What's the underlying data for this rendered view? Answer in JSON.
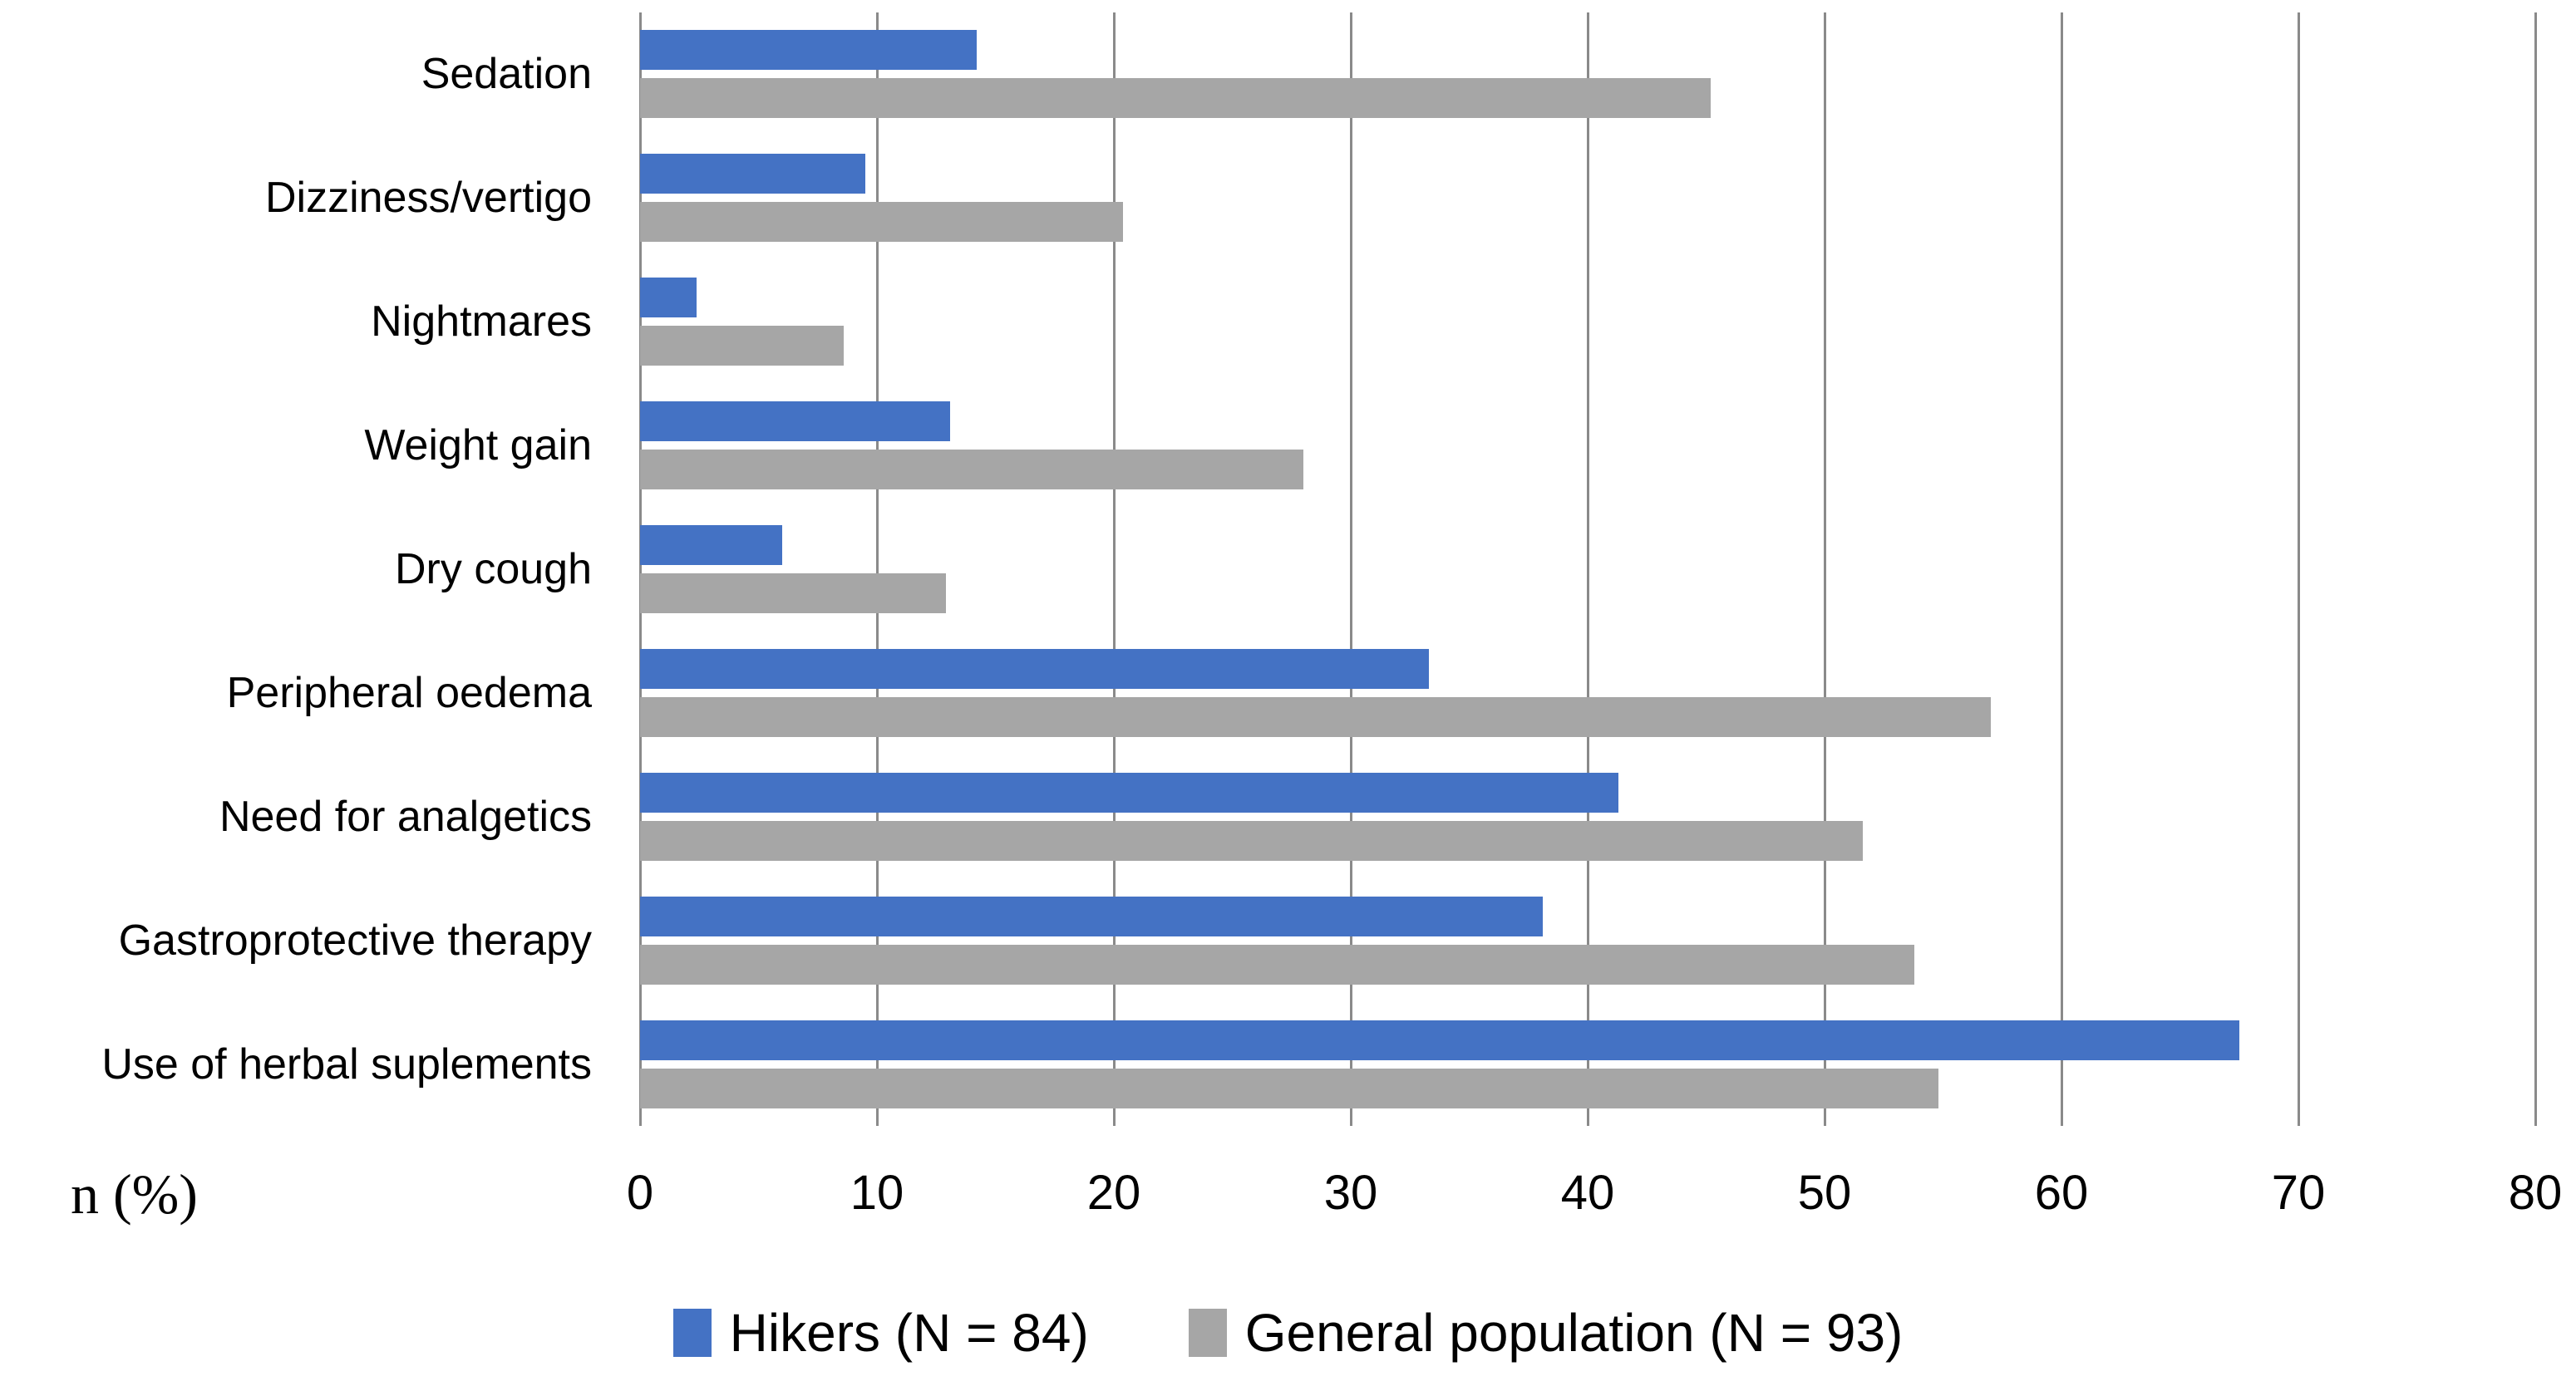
{
  "chart_data": {
    "type": "bar",
    "orientation": "horizontal",
    "title": "",
    "xlabel": "n (%)",
    "ylabel": "",
    "xlim": [
      0,
      80
    ],
    "xticks": [
      0,
      10,
      20,
      30,
      40,
      50,
      60,
      70,
      80
    ],
    "grid": "vertical-only",
    "legend_position": "bottom",
    "categories": [
      "Sedation",
      "Dizziness/vertigo",
      "Nightmares",
      "Weight gain",
      "Dry cough",
      "Peripheral oedema",
      "Need for analgetics",
      "Gastroprotective therapy",
      "Use of herbal suplements"
    ],
    "series": [
      {
        "name": "Hikers (N = 84)",
        "color": "#4472C4",
        "values": [
          14.2,
          9.5,
          2.4,
          13.1,
          6.0,
          33.3,
          41.3,
          38.1,
          67.5
        ]
      },
      {
        "name": "General population (N = 93)",
        "color": "#A6A6A6",
        "values": [
          45.2,
          20.4,
          8.6,
          28.0,
          12.9,
          57.0,
          51.6,
          53.8,
          54.8
        ]
      }
    ]
  },
  "colors": {
    "hikers_bar": "#4472C4",
    "general_bar": "#A6A6A6",
    "gridline": "#8a8a8a",
    "text": "#000000",
    "background": "#ffffff"
  }
}
